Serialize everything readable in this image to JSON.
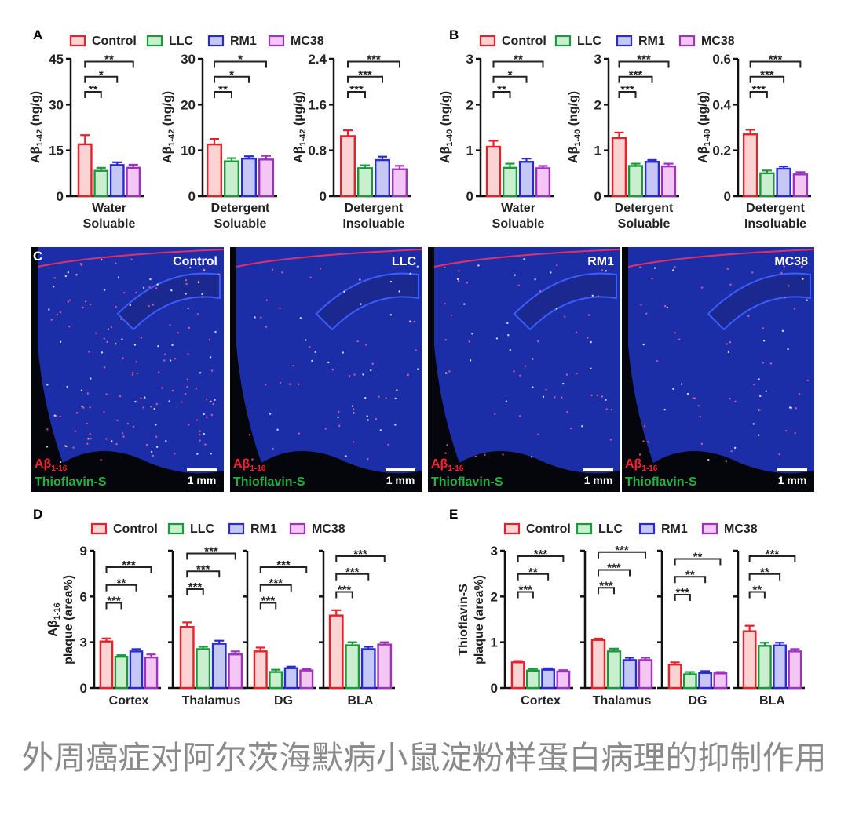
{
  "groups": [
    {
      "name": "Control",
      "edge": "#e8202a",
      "fill": "#fbd3d3"
    },
    {
      "name": "LLC",
      "edge": "#1a9a3a",
      "fill": "#c9efcf"
    },
    {
      "name": "RM1",
      "edge": "#2a2ad0",
      "fill": "#c5c8f5"
    },
    {
      "name": "MC38",
      "edge": "#a030c0",
      "fill": "#f3c6f3"
    }
  ],
  "panels": {
    "A": "A",
    "B": "B",
    "C": "C",
    "D": "D",
    "E": "E"
  },
  "chart_data": [
    {
      "panel": "A",
      "type": "bar",
      "ylabel": {
        "main": "Aβ",
        "sub": "1-42",
        "unit": " (ng/g)"
      },
      "xlabel": [
        "Water",
        "Soluable"
      ],
      "ylim": [
        0,
        45
      ],
      "ticks": [
        "0",
        "15",
        "30",
        "45"
      ],
      "values": [
        17,
        8.3,
        10.2,
        9.3
      ],
      "errors": [
        3,
        1,
        0.9,
        1
      ],
      "sig": [
        [
          0,
          1,
          "**"
        ],
        [
          0,
          2,
          "*"
        ],
        [
          0,
          3,
          "**"
        ]
      ]
    },
    {
      "panel": "A",
      "type": "bar",
      "ylabel": {
        "main": "Aβ",
        "sub": "1-42",
        "unit": " (ng/g)"
      },
      "xlabel": [
        "Detergent",
        "Soluable"
      ],
      "ylim": [
        0,
        30
      ],
      "ticks": [
        "0",
        "10",
        "20",
        "30"
      ],
      "values": [
        11.3,
        7.6,
        8.2,
        8.0
      ],
      "errors": [
        1.2,
        0.7,
        0.5,
        0.8
      ],
      "sig": [
        [
          0,
          1,
          "**"
        ],
        [
          0,
          2,
          "*"
        ],
        [
          0,
          3,
          "*"
        ]
      ]
    },
    {
      "panel": "A",
      "type": "bar",
      "ylabel": {
        "main": "Aβ",
        "sub": "1-42",
        "unit": " (µg/g)"
      },
      "xlabel": [
        "Detergent",
        "Insoluable"
      ],
      "ylim": [
        0,
        2.4
      ],
      "ticks": [
        "0",
        "0.8",
        "1.6",
        "2.4"
      ],
      "values": [
        1.05,
        0.49,
        0.63,
        0.47
      ],
      "errors": [
        0.1,
        0.05,
        0.06,
        0.06
      ],
      "sig": [
        [
          0,
          1,
          "***"
        ],
        [
          0,
          2,
          "***"
        ],
        [
          0,
          3,
          "***"
        ]
      ]
    },
    {
      "panel": "B",
      "type": "bar",
      "ylabel": {
        "main": "Aβ",
        "sub": "1-40",
        "unit": " (ng/g)"
      },
      "xlabel": [
        "Water",
        "Soluable"
      ],
      "ylim": [
        0,
        3
      ],
      "ticks": [
        "0",
        "1",
        "2",
        "3"
      ],
      "values": [
        1.08,
        0.62,
        0.75,
        0.61
      ],
      "errors": [
        0.13,
        0.09,
        0.07,
        0.05
      ],
      "sig": [
        [
          0,
          1,
          "**"
        ],
        [
          0,
          2,
          "*"
        ],
        [
          0,
          3,
          "**"
        ]
      ]
    },
    {
      "panel": "B",
      "type": "bar",
      "ylabel": {
        "main": "Aβ",
        "sub": "1-40",
        "unit": " (ng/g)"
      },
      "xlabel": [
        "Detergent",
        "Soluable"
      ],
      "ylim": [
        0,
        3
      ],
      "ticks": [
        "0",
        "1",
        "2",
        "3"
      ],
      "values": [
        1.27,
        0.66,
        0.75,
        0.65
      ],
      "errors": [
        0.12,
        0.05,
        0.04,
        0.06
      ],
      "sig": [
        [
          0,
          1,
          "***"
        ],
        [
          0,
          2,
          "***"
        ],
        [
          0,
          3,
          "***"
        ]
      ]
    },
    {
      "panel": "B",
      "type": "bar",
      "ylabel": {
        "main": "Aβ",
        "sub": "1-40",
        "unit": " (µg/g)"
      },
      "xlabel": [
        "Detergent",
        "Insoluable"
      ],
      "ylim": [
        0,
        0.6
      ],
      "ticks": [
        "0",
        "0.2",
        "0.4",
        "0.6"
      ],
      "values": [
        0.27,
        0.1,
        0.12,
        0.095
      ],
      "errors": [
        0.02,
        0.012,
        0.01,
        0.01
      ],
      "sig": [
        [
          0,
          1,
          "***"
        ],
        [
          0,
          2,
          "***"
        ],
        [
          0,
          3,
          "***"
        ]
      ]
    },
    {
      "panel": "D",
      "type": "bar",
      "ylabel": {
        "main": "Aβ",
        "sub": "1-16",
        "line2": "plaque (area%)"
      },
      "ylim": [
        0,
        9
      ],
      "ticks": [
        "0",
        "3",
        "6",
        "9"
      ],
      "regions": [
        {
          "name": "Cortex",
          "values": [
            3.05,
            2.05,
            2.4,
            2.0
          ],
          "errors": [
            0.2,
            0.1,
            0.15,
            0.2
          ],
          "sig": [
            [
              0,
              1,
              "***"
            ],
            [
              0,
              2,
              "**"
            ],
            [
              0,
              3,
              "***"
            ]
          ]
        },
        {
          "name": "Thalamus",
          "values": [
            4.0,
            2.55,
            2.9,
            2.2
          ],
          "errors": [
            0.3,
            0.15,
            0.2,
            0.2
          ],
          "sig": [
            [
              0,
              1,
              "***"
            ],
            [
              0,
              2,
              "***"
            ],
            [
              0,
              3,
              "***"
            ]
          ]
        },
        {
          "name": "DG",
          "values": [
            2.4,
            1.05,
            1.3,
            1.15
          ],
          "errors": [
            0.25,
            0.15,
            0.1,
            0.1
          ],
          "sig": [
            [
              0,
              1,
              "***"
            ],
            [
              0,
              2,
              "***"
            ],
            [
              0,
              3,
              "***"
            ]
          ]
        },
        {
          "name": "BLA",
          "values": [
            4.75,
            2.8,
            2.55,
            2.85
          ],
          "errors": [
            0.35,
            0.2,
            0.15,
            0.15
          ],
          "sig": [
            [
              0,
              1,
              "***"
            ],
            [
              0,
              2,
              "***"
            ],
            [
              0,
              3,
              "***"
            ]
          ]
        }
      ]
    },
    {
      "panel": "E",
      "type": "bar",
      "ylabel": {
        "main": "Thioflavin-S",
        "line2": "plaque (area%)"
      },
      "ylim": [
        0,
        3
      ],
      "ticks": [
        "0",
        "1",
        "2",
        "3"
      ],
      "regions": [
        {
          "name": "Cortex",
          "values": [
            0.56,
            0.38,
            0.4,
            0.36
          ],
          "errors": [
            0.03,
            0.04,
            0.03,
            0.03
          ],
          "sig": [
            [
              0,
              1,
              "***"
            ],
            [
              0,
              2,
              "**"
            ],
            [
              0,
              3,
              "***"
            ]
          ]
        },
        {
          "name": "Thalamus",
          "values": [
            1.05,
            0.8,
            0.61,
            0.61
          ],
          "errors": [
            0.03,
            0.06,
            0.05,
            0.05
          ],
          "sig": [
            [
              0,
              1,
              "***"
            ],
            [
              0,
              2,
              "***"
            ],
            [
              0,
              3,
              "***"
            ]
          ]
        },
        {
          "name": "DG",
          "values": [
            0.51,
            0.3,
            0.33,
            0.32
          ],
          "errors": [
            0.05,
            0.05,
            0.04,
            0.03
          ],
          "sig": [
            [
              0,
              1,
              "***"
            ],
            [
              0,
              2,
              "**"
            ],
            [
              0,
              3,
              "**"
            ]
          ]
        },
        {
          "name": "BLA",
          "values": [
            1.24,
            0.92,
            0.93,
            0.8
          ],
          "errors": [
            0.12,
            0.07,
            0.06,
            0.05
          ],
          "sig": [
            [
              0,
              1,
              "**"
            ],
            [
              0,
              2,
              "**"
            ],
            [
              0,
              3,
              "***"
            ]
          ]
        }
      ]
    }
  ],
  "images": [
    {
      "condition": "Control",
      "stain1": "Aβ",
      "stain1_sub": "1-16",
      "stain2": "Thioflavin-S",
      "scale": "1 mm"
    },
    {
      "condition": "LLC",
      "stain1": "Aβ",
      "stain1_sub": "1-16",
      "stain2": "Thioflavin-S",
      "scale": "1 mm"
    },
    {
      "condition": "RM1",
      "stain1": "Aβ",
      "stain1_sub": "1-16",
      "stain2": "Thioflavin-S",
      "scale": "1 mm"
    },
    {
      "condition": "MC38",
      "stain1": "Aβ",
      "stain1_sub": "1-16",
      "stain2": "Thioflavin-S",
      "scale": "1 mm"
    }
  ],
  "caption": "外周癌症对阿尔茨海默病小鼠淀粉样蛋白病理的抑制作用"
}
